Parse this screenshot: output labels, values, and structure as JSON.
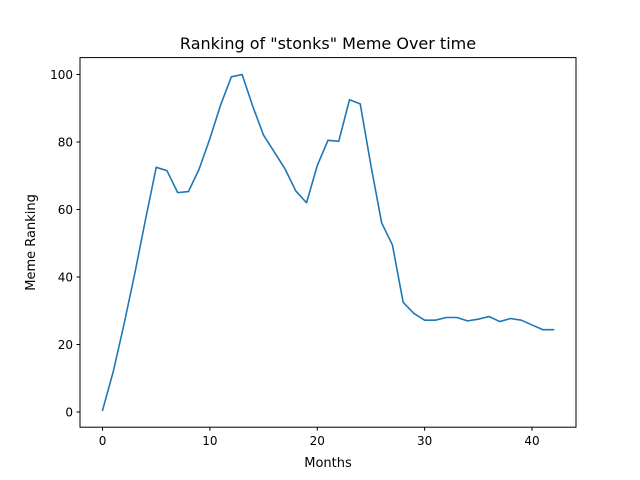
{
  "chart_data": {
    "type": "line",
    "title": "Ranking of \"stonks\" Meme Over time",
    "xlabel": "Months",
    "ylabel": "Meme Ranking",
    "xlim": [
      -2.1,
      44.1
    ],
    "ylim": [
      -4.5,
      105
    ],
    "xticks": [
      0,
      10,
      20,
      30,
      40
    ],
    "yticks": [
      0,
      20,
      40,
      60,
      80,
      100
    ],
    "grid": false,
    "series": [
      {
        "color": "#1f77b4",
        "x": [
          0,
          1,
          2,
          3,
          4,
          5,
          6,
          7,
          8,
          9,
          10,
          11,
          12,
          13,
          14,
          15,
          16,
          17,
          18,
          19,
          20,
          21,
          22,
          23,
          24,
          25,
          26,
          27,
          28,
          29,
          30,
          31,
          32,
          33,
          34,
          35,
          36,
          37,
          38,
          39,
          40,
          41,
          42
        ],
        "y": [
          0.5,
          12,
          26,
          41,
          57,
          72.5,
          71.5,
          65,
          65.3,
          72,
          81,
          91,
          99.3,
          100,
          90.5,
          82,
          77,
          72,
          65.5,
          62,
          73,
          80.5,
          80.2,
          92.5,
          91.3,
          73,
          56,
          49.5,
          32.5,
          29.2,
          27.2,
          27.2,
          28,
          28,
          27,
          27.5,
          28.3,
          26.8,
          27.7,
          27.2,
          25.8,
          24.4,
          24.4
        ]
      }
    ]
  }
}
